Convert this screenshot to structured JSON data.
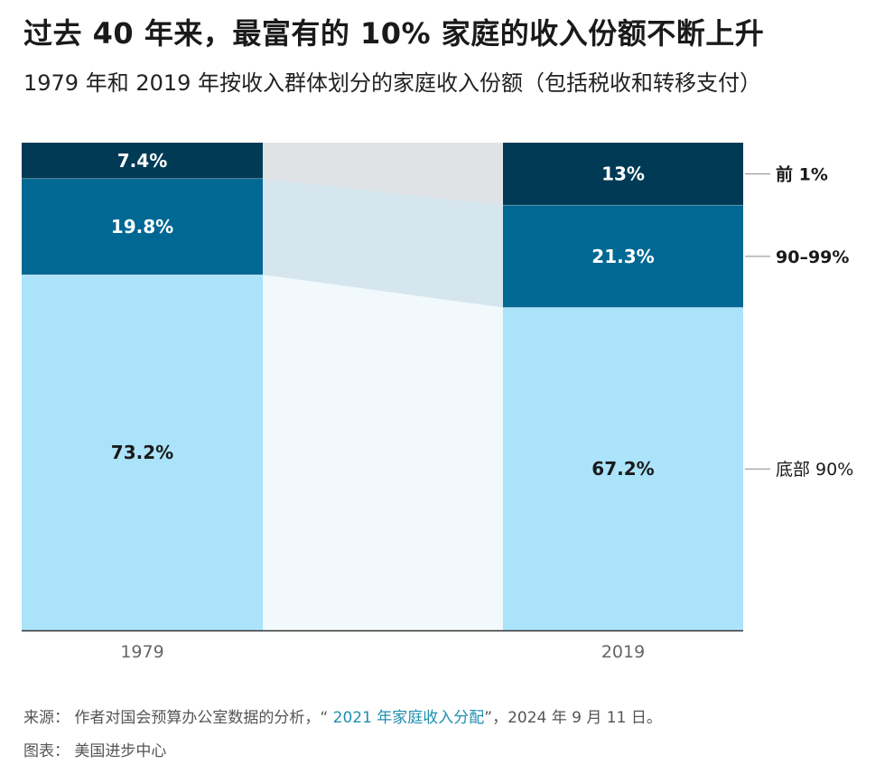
{
  "header": {
    "title": "过去 40 年来，最富有的 10% 家庭的收入份额不断上升",
    "subtitle": "1979 年和 2019 年按收入群体划分的家庭收入份额（包括税收和转移支付）"
  },
  "colors": {
    "bottom": "#abe3fb",
    "mid": "#006892",
    "top": "#003a55",
    "band_light": "#f1f9fd",
    "band_mid": "#d6e6ee",
    "band_top": "#dfe3e6",
    "axis": "#333333",
    "leader": "#888888"
  },
  "chart_data": {
    "type": "bar",
    "stacked": true,
    "percent_scale": true,
    "categories": [
      "1979",
      "2019"
    ],
    "series": [
      {
        "name": "底部 90%",
        "values": [
          73.2,
          67.2
        ],
        "labels": [
          "73.2%",
          "67.2%"
        ]
      },
      {
        "name": "90–99%",
        "values": [
          19.8,
          21.3
        ],
        "labels": [
          "19.8%",
          "21.3%"
        ]
      },
      {
        "name": "前 1%",
        "values": [
          7.4,
          13
        ],
        "labels": [
          "7.4%",
          "13%"
        ]
      }
    ],
    "legend_position": "right"
  },
  "footer": {
    "source_prefix": "来源：  作者对国会预算办公室数据的分析，“ ",
    "source_link": "2021 年家庭收入分配",
    "source_suffix": "”，2024 年 9 月 11 日。",
    "credit": "图表：  美国进步中心"
  }
}
